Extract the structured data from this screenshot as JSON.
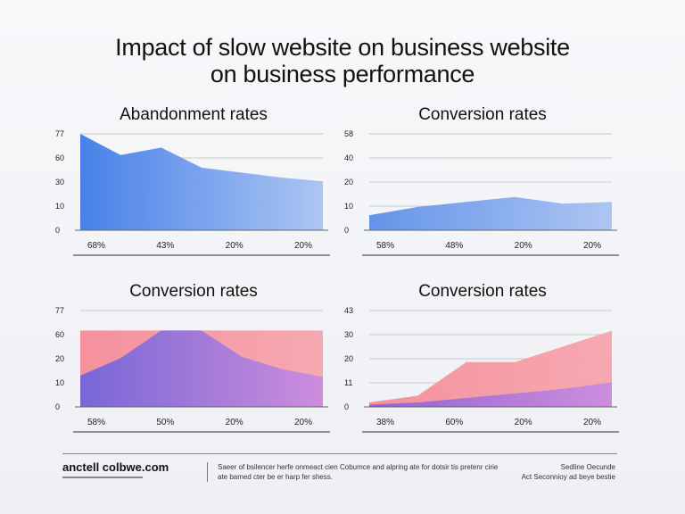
{
  "title_line1": "Impact of slow website on business website",
  "title_line2": "on business performance",
  "chart_data": [
    {
      "type": "area",
      "title": "Abandonment rates",
      "y_ticks": [
        "77",
        "60",
        "30",
        "10",
        "0"
      ],
      "categories": [
        "68%",
        "43%",
        "20%",
        "20%"
      ],
      "ylim": [
        0,
        77
      ],
      "series": [
        {
          "x": [
            0,
            1,
            2,
            3,
            4,
            5,
            6
          ],
          "values": [
            77,
            60,
            66,
            50,
            46,
            42,
            39
          ],
          "color": "#3f7be8"
        }
      ]
    },
    {
      "type": "area",
      "title": "Conversion rates",
      "y_ticks": [
        "58",
        "40",
        "20",
        "10",
        "0"
      ],
      "categories": [
        "58%",
        "48%",
        "20%",
        "20%"
      ],
      "ylim": [
        0,
        58
      ],
      "series": [
        {
          "x": [
            0,
            1,
            2,
            3,
            4,
            5
          ],
          "values": [
            9,
            14,
            17,
            20,
            16,
            17
          ],
          "color": "#5c8fe8"
        }
      ]
    },
    {
      "type": "area",
      "title": "Conversion rates",
      "y_ticks": [
        "77",
        "60",
        "20",
        "10",
        "0"
      ],
      "categories": [
        "58%",
        "50%",
        "20%",
        "20%"
      ],
      "ylim": [
        0,
        77
      ],
      "series": [
        {
          "x": [
            0,
            1,
            2,
            3,
            4,
            5,
            6
          ],
          "values": [
            61,
            61,
            61,
            61,
            61,
            61,
            61
          ],
          "color": "#f58c98"
        },
        {
          "x": [
            0,
            1,
            2,
            3,
            4,
            5,
            6
          ],
          "values": [
            25,
            39,
            61,
            61,
            40,
            30,
            24
          ],
          "color": "#6e63dc"
        }
      ]
    },
    {
      "type": "area",
      "title": "Conversion rates",
      "y_ticks": [
        "43",
        "30",
        "20",
        "11",
        "0"
      ],
      "categories": [
        "38%",
        "60%",
        "20%",
        "20%"
      ],
      "ylim": [
        0,
        43
      ],
      "series": [
        {
          "x": [
            0,
            1,
            2,
            3,
            4,
            5
          ],
          "values": [
            2,
            5,
            20,
            20,
            27,
            34
          ],
          "color": "#f58c98"
        },
        {
          "x": [
            0,
            1,
            2,
            3,
            4,
            5
          ],
          "values": [
            1,
            2,
            4,
            6,
            8,
            11
          ],
          "color": "#8a5fd8"
        }
      ]
    }
  ],
  "footer": {
    "brand": "anctell colbwe.com",
    "note": "Saeer of bsilencer herfe onmeact cien Cobumce and alpring ate for dotsir tis pretenr cirie ate bamed cter be er harp fer shess.",
    "right_line1": "Sedline Oecunde",
    "right_line2": "Act Seconnioy ad beye bestie"
  }
}
